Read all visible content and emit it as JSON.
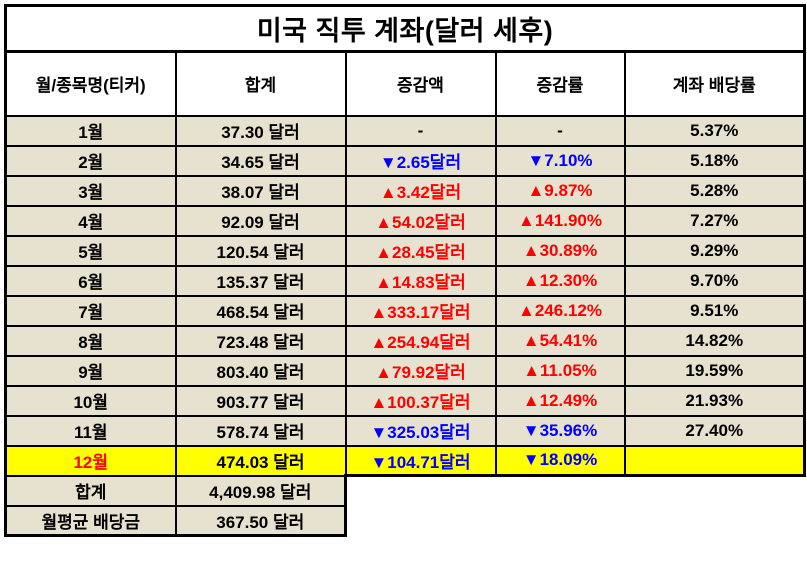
{
  "chart_data": {
    "type": "table",
    "title": "미국 직투 계좌(달러 세후)",
    "columns": [
      "월/종목명(티커)",
      "합계",
      "증감액",
      "증감률",
      "계좌 배당률"
    ],
    "rows": [
      {
        "month": "1월",
        "month_color": "black",
        "total": "37.30 달러",
        "change": "-",
        "change_color": "black",
        "rate": "-",
        "rate_color": "black",
        "dividend": "5.37%",
        "highlight": false
      },
      {
        "month": "2월",
        "month_color": "black",
        "total": "34.65 달러",
        "change": "▼2.65달러",
        "change_color": "blue",
        "rate": "▼7.10%",
        "rate_color": "blue",
        "dividend": "5.18%",
        "highlight": false
      },
      {
        "month": "3월",
        "month_color": "black",
        "total": "38.07 달러",
        "change": "▲3.42달러",
        "change_color": "red",
        "rate": "▲9.87%",
        "rate_color": "red",
        "dividend": "5.28%",
        "highlight": false
      },
      {
        "month": "4월",
        "month_color": "black",
        "total": "92.09 달러",
        "change": "▲54.02달러",
        "change_color": "red",
        "rate": "▲141.90%",
        "rate_color": "red",
        "dividend": "7.27%",
        "highlight": false
      },
      {
        "month": "5월",
        "month_color": "black",
        "total": "120.54 달러",
        "change": "▲28.45달러",
        "change_color": "red",
        "rate": "▲30.89%",
        "rate_color": "red",
        "dividend": "9.29%",
        "highlight": false
      },
      {
        "month": "6월",
        "month_color": "black",
        "total": "135.37 달러",
        "change": "▲14.83달러",
        "change_color": "red",
        "rate": "▲12.30%",
        "rate_color": "red",
        "dividend": "9.70%",
        "highlight": false
      },
      {
        "month": "7월",
        "month_color": "black",
        "total": "468.54 달러",
        "change": "▲333.17달러",
        "change_color": "red",
        "rate": "▲246.12%",
        "rate_color": "red",
        "dividend": "9.51%",
        "highlight": false
      },
      {
        "month": "8월",
        "month_color": "black",
        "total": "723.48 달러",
        "change": "▲254.94달러",
        "change_color": "red",
        "rate": "▲54.41%",
        "rate_color": "red",
        "dividend": "14.82%",
        "highlight": false
      },
      {
        "month": "9월",
        "month_color": "black",
        "total": "803.40 달러",
        "change": "▲79.92달러",
        "change_color": "red",
        "rate": "▲11.05%",
        "rate_color": "red",
        "dividend": "19.59%",
        "highlight": false
      },
      {
        "month": "10월",
        "month_color": "black",
        "total": "903.77 달러",
        "change": "▲100.37달러",
        "change_color": "red",
        "rate": "▲12.49%",
        "rate_color": "red",
        "dividend": "21.93%",
        "highlight": false
      },
      {
        "month": "11월",
        "month_color": "black",
        "total": "578.74 달러",
        "change": "▼325.03달러",
        "change_color": "blue",
        "rate": "▼35.96%",
        "rate_color": "blue",
        "dividend": "27.40%",
        "highlight": false
      },
      {
        "month": "12월",
        "month_color": "red",
        "total": "474.03 달러",
        "change": "▼104.71달러",
        "change_color": "blue",
        "rate": "▼18.09%",
        "rate_color": "blue",
        "dividend": "",
        "highlight": true
      }
    ],
    "footer_rows": [
      {
        "label": "합계",
        "value": "4,409.98 달러"
      },
      {
        "label": "월평균 배당금",
        "value": "367.50 달러"
      }
    ]
  },
  "icons": {
    "increase": "▲",
    "decrease": "▼"
  },
  "colors": {
    "row_bg": "#e6e2cf",
    "highlight_bg": "#ffff00",
    "increase_text": "#ff0000",
    "decrease_text": "#0000ff",
    "border": "#000000"
  }
}
